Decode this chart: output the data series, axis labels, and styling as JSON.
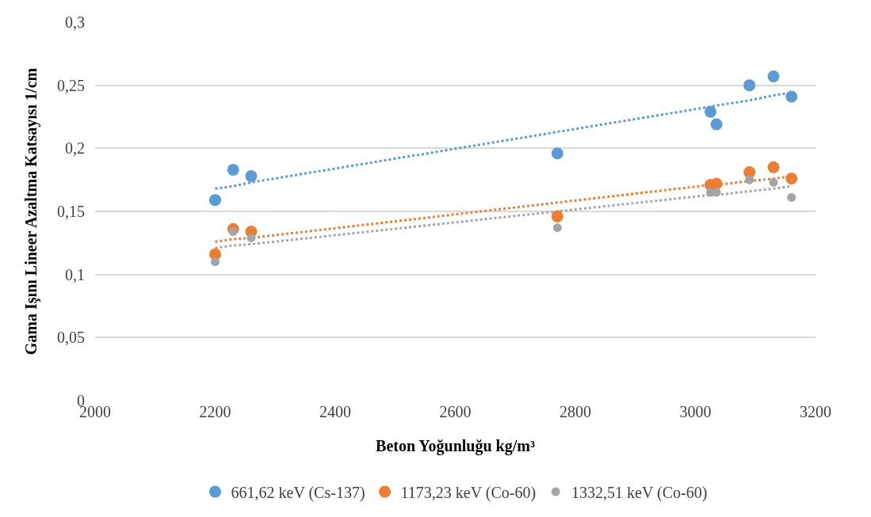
{
  "chart_data": {
    "type": "scatter",
    "xlabel": "Beton Yoğunluğu kg/m³",
    "ylabel": "Gama Işını Lineer Azaltma Katsayısı 1/cm",
    "x": [
      2200,
      2230,
      2260,
      2770,
      3025,
      3035,
      3090,
      3130,
      3160
    ],
    "series": [
      {
        "type": "line",
        "color": "#5b9bd5",
        "values": [
          0.168,
          0.17,
          0.173,
          0.213,
          0.233,
          0.234,
          0.238,
          0.242,
          0.244
        ],
        "line_style": "dotted",
        "marker": "none"
      },
      {
        "type": "line",
        "color": "#ed7d31",
        "values": [
          0.126,
          0.128,
          0.129,
          0.157,
          0.171,
          0.171,
          0.174,
          0.176,
          0.178
        ],
        "line_style": "dotted",
        "marker": "none"
      },
      {
        "type": "line",
        "color": "#a5a5a5",
        "values": [
          0.121,
          0.123,
          0.124,
          0.15,
          0.163,
          0.163,
          0.166,
          0.168,
          0.17
        ],
        "line_style": "dotted",
        "marker": "none"
      },
      {
        "name": "661,62 keV (Cs-137)",
        "color": "#5b9bd5",
        "values": [
          0.159,
          0.183,
          0.178,
          0.196,
          0.229,
          0.219,
          0.25,
          0.257,
          0.241
        ]
      },
      {
        "name": "1173,23 keV (Co-60)",
        "color": "#ed7d31",
        "values": [
          0.116,
          0.136,
          0.134,
          0.146,
          0.171,
          0.172,
          0.181,
          0.185,
          0.176
        ]
      },
      {
        "name": "1332,51 keV (Co-60)",
        "color": "#a5a5a5",
        "values": [
          0.11,
          0.134,
          0.129,
          0.137,
          0.165,
          0.165,
          0.175,
          0.173,
          0.161
        ]
      }
    ],
    "xlim": [
      2000,
      3200
    ],
    "xticks": [
      2000,
      2200,
      2400,
      2600,
      2800,
      3000,
      3200
    ],
    "ylim": [
      0,
      0.3
    ],
    "yticks": [
      {
        "value": 0,
        "label": "0"
      },
      {
        "value": 0.05,
        "label": "0,05"
      },
      {
        "value": 0.1,
        "label": "0,1"
      },
      {
        "value": 0.15,
        "label": "0,15"
      },
      {
        "value": 0.2,
        "label": "0,2"
      },
      {
        "value": 0.25,
        "label": "0,25"
      },
      {
        "value": 0.3,
        "label": "0,3"
      }
    ],
    "grid": "y",
    "legend": "bottom",
    "marker": "circle"
  }
}
